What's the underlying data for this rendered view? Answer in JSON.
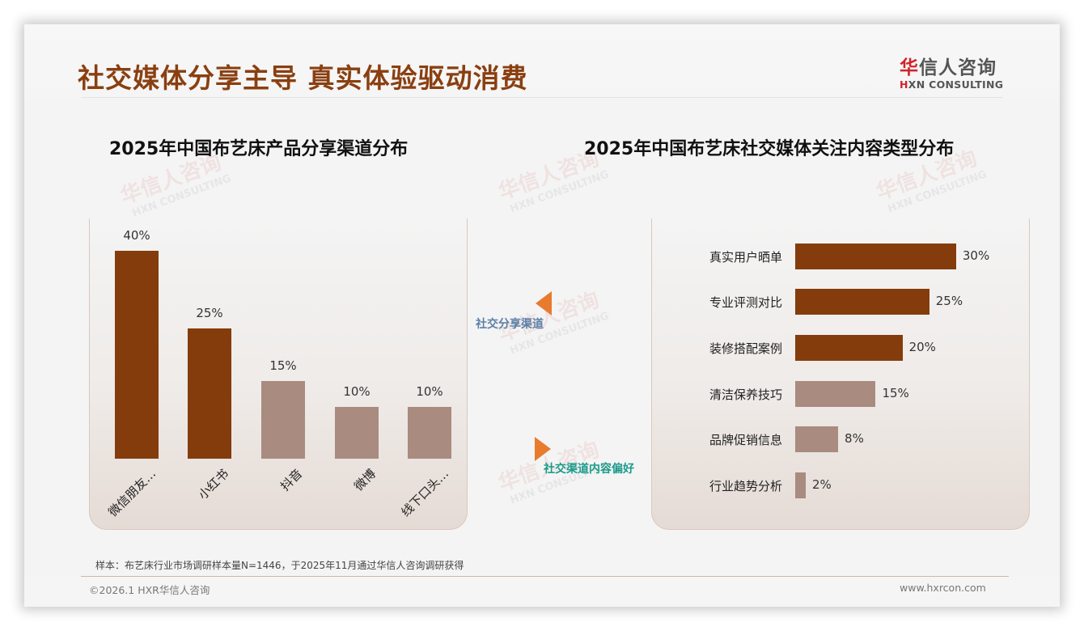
{
  "header": {
    "title": "社交媒体分享主导 真实体验驱动消费",
    "logo": {
      "cn_accent": "华",
      "cn_rest": "信人咨询",
      "en_accent": "H",
      "en_rest": "XN CONSULTING"
    }
  },
  "watermark": {
    "cn": "华信人咨询",
    "en": "HXN CONSULTING"
  },
  "middle": {
    "share_channel_label": "社交分享渠道",
    "content_pref_label": "社交渠道内容偏好",
    "arrow_color": "#e87b2e",
    "share_label_color": "#5b7fa6",
    "pref_label_color": "#1a9a8a"
  },
  "chart_data": [
    {
      "type": "bar",
      "title": "2025年中国布艺床产品分享渠道分布",
      "categories": [
        "微信朋友…",
        "小红书",
        "抖音",
        "微博",
        "线下口头…"
      ],
      "values": [
        40,
        25,
        15,
        10,
        10
      ],
      "value_labels": [
        "40%",
        "25%",
        "15%",
        "10%",
        "10%"
      ],
      "colors": [
        "#843c0c",
        "#843c0c",
        "#a98b80",
        "#a98b80",
        "#a98b80"
      ],
      "xlabel": "",
      "ylabel": "",
      "unit": "%",
      "ylim": [
        0,
        40
      ],
      "grid": false,
      "legend": "none",
      "orientation": "vertical"
    },
    {
      "type": "bar",
      "title": "2025年中国布艺床社交媒体关注内容类型分布",
      "categories": [
        "真实用户晒单",
        "专业评测对比",
        "装修搭配案例",
        "清洁保养技巧",
        "品牌促销信息",
        "行业趋势分析"
      ],
      "values": [
        30,
        25,
        20,
        15,
        8,
        2
      ],
      "value_labels": [
        "30%",
        "25%",
        "20%",
        "15%",
        "8%",
        "2%"
      ],
      "colors": [
        "#843c0c",
        "#843c0c",
        "#843c0c",
        "#a98b80",
        "#a98b80",
        "#a98b80"
      ],
      "xlabel": "",
      "ylabel": "",
      "unit": "%",
      "xlim": [
        0,
        30
      ],
      "grid": false,
      "legend": "none",
      "orientation": "horizontal"
    }
  ],
  "footer": {
    "sample_note": "样本：布艺床行业市场调研样本量N=1446，于2025年11月通过华信人咨询调研获得",
    "copyright": "©2026.1 HXR华信人咨询",
    "url": "www.hxrcon.com"
  }
}
